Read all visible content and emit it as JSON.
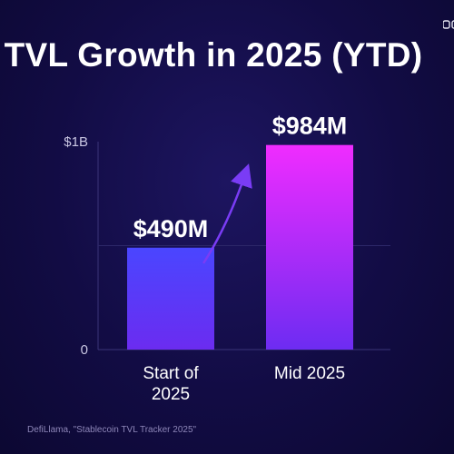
{
  "logo_text": "CoinGecko",
  "source": "DefiLlama, \"Stablecoin TVL Tracker 2025\"",
  "chart_data": {
    "type": "bar",
    "title": "TVL Growth in 2025 (YTD)",
    "categories": [
      [
        "Start of",
        "2025"
      ],
      [
        "Mid 2025"
      ]
    ],
    "values": [
      490,
      984
    ],
    "data_labels": [
      "$490M",
      "$984M"
    ],
    "unit": "$M",
    "ylim": [
      0,
      1000
    ],
    "yticks": [
      {
        "value": 0,
        "label": "0"
      },
      {
        "value": 1000,
        "label": "$1B"
      }
    ],
    "grid": true,
    "legend": "none",
    "colors": {
      "bar1": [
        "#4a46ff",
        "#6b2cf0"
      ],
      "bar2": [
        "#f02cff",
        "#6d2cf2"
      ],
      "arrow": "#7a3cf5"
    }
  }
}
